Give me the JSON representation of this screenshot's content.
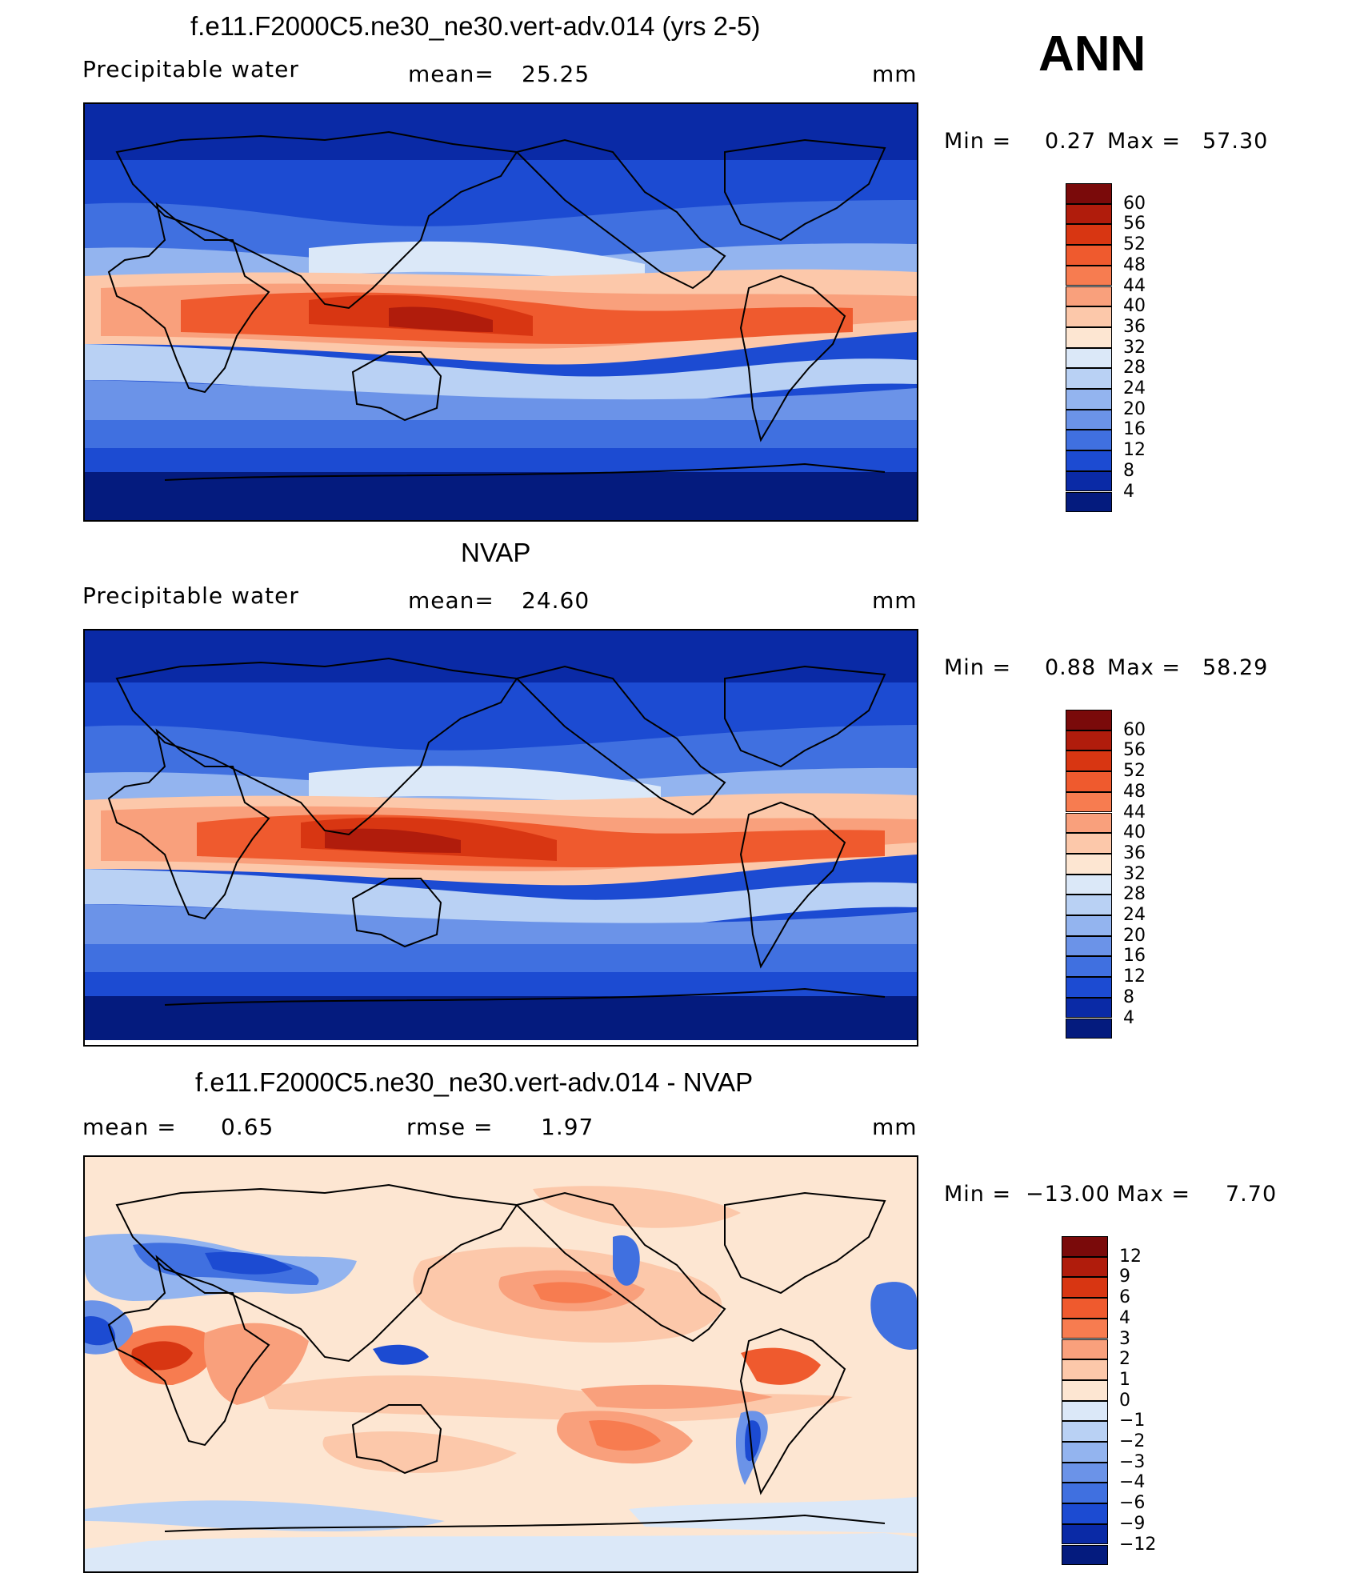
{
  "season": "ANN",
  "panels": [
    {
      "title": "f.e11.F2000C5.ne30_ne30.vert-adv.014 (yrs 2-5)",
      "left_label": "Precipitable  water",
      "stat1_label": "mean=",
      "stat1_value": "25.25",
      "units": "mm",
      "min_label": "Min  =",
      "min_value": "0.27",
      "max_label": "Max  =",
      "max_value": "57.30",
      "levels": [
        "60",
        "56",
        "52",
        "48",
        "44",
        "40",
        "36",
        "32",
        "28",
        "24",
        "20",
        "16",
        "12",
        "8",
        "4"
      ]
    },
    {
      "title": "NVAP",
      "left_label": "Precipitable  water",
      "stat1_label": "mean=",
      "stat1_value": "24.60",
      "units": "mm",
      "min_label": "Min  =",
      "min_value": "0.88",
      "max_label": "Max  =",
      "max_value": "58.29",
      "levels": [
        "60",
        "56",
        "52",
        "48",
        "44",
        "40",
        "36",
        "32",
        "28",
        "24",
        "20",
        "16",
        "12",
        "8",
        "4"
      ]
    },
    {
      "title": "f.e11.F2000C5.ne30_ne30.vert-adv.014 - NVAP",
      "left_label": "mean  =",
      "left_value": "0.65",
      "stat1_label": "rmse  =",
      "stat1_value": "1.97",
      "units": "mm",
      "min_label": "Min  =",
      "min_value": "−13.00",
      "max_label": "Max  =",
      "max_value": "7.70",
      "levels": [
        "12",
        "9",
        "6",
        "4",
        "3",
        "2",
        "1",
        "0",
        "−1",
        "−2",
        "−3",
        "−4",
        "−6",
        "−9",
        "−12"
      ]
    }
  ],
  "colors": {
    "abs_scale": [
      "#7a0a0a",
      "#b01c0c",
      "#d83612",
      "#ef5a2e",
      "#f77c50",
      "#f9a07c",
      "#fcc8aa",
      "#fde6d2",
      "#dbe8f8",
      "#b9d1f4",
      "#93b4ef",
      "#6b93e8",
      "#4070e0",
      "#1c4bd2",
      "#0a2aa6",
      "#041b7e"
    ],
    "diff_scale": [
      "#7a0a0a",
      "#b01c0c",
      "#d83612",
      "#ef5a2e",
      "#f77c50",
      "#f9a07c",
      "#fcc8aa",
      "#fde6d2",
      "#dbe8f8",
      "#b9d1f4",
      "#93b4ef",
      "#6b93e8",
      "#4070e0",
      "#1c4bd2",
      "#0a2aa6",
      "#041b7e"
    ]
  },
  "chart_data": [
    {
      "type": "heatmap",
      "title": "f.e11.F2000C5.ne30_ne30.vert-adv.014 (yrs 2-5)",
      "variable": "Precipitable  water",
      "units": "mm",
      "mean": 25.25,
      "min": 0.27,
      "max": 57.3,
      "contour_levels": [
        4,
        8,
        12,
        16,
        20,
        24,
        28,
        32,
        36,
        40,
        44,
        48,
        52,
        56,
        60
      ],
      "grid": false
    },
    {
      "type": "heatmap",
      "title": "NVAP",
      "variable": "Precipitable  water",
      "units": "mm",
      "mean": 24.6,
      "min": 0.88,
      "max": 58.29,
      "contour_levels": [
        4,
        8,
        12,
        16,
        20,
        24,
        28,
        32,
        36,
        40,
        44,
        48,
        52,
        56,
        60
      ],
      "grid": false
    },
    {
      "type": "heatmap",
      "title": "f.e11.F2000C5.ne30_ne30.vert-adv.014 - NVAP",
      "units": "mm",
      "mean": 0.65,
      "rmse": 1.97,
      "min": -13.0,
      "max": 7.7,
      "contour_levels": [
        -12,
        -9,
        -6,
        -4,
        -3,
        -2,
        -1,
        0,
        1,
        2,
        3,
        4,
        6,
        9,
        12
      ],
      "grid": false
    }
  ]
}
